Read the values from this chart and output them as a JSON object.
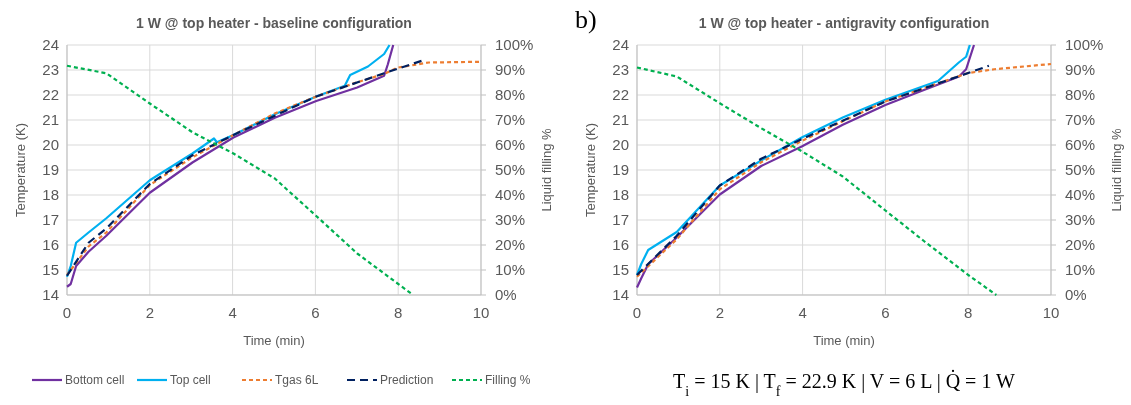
{
  "chart_data": [
    {
      "type": "line",
      "title": "1 W @ top heater - baseline configuration",
      "xlabel": "Time (min)",
      "ylabel": "Temperature (K)",
      "y2label": "Liquid filling %",
      "xlim": [
        0,
        10
      ],
      "xticks": [
        0,
        2,
        4,
        6,
        8,
        10
      ],
      "ylim": [
        14,
        24
      ],
      "yticks": [
        14,
        15,
        16,
        17,
        18,
        19,
        20,
        21,
        22,
        23,
        24
      ],
      "y2lim": [
        0,
        100
      ],
      "y2ticks": [
        {
          "value": 0,
          "label": "0%"
        },
        {
          "value": 10,
          "label": "10%"
        },
        {
          "value": 20,
          "label": "20%"
        },
        {
          "value": 30,
          "label": "30%"
        },
        {
          "value": 40,
          "label": "40%"
        },
        {
          "value": 50,
          "label": "50%"
        },
        {
          "value": 60,
          "label": "60%"
        },
        {
          "value": 70,
          "label": "70%"
        },
        {
          "value": 80,
          "label": "80%"
        },
        {
          "value": 90,
          "label": "90%"
        },
        {
          "value": 100,
          "label": "100%"
        }
      ],
      "grid": true,
      "legend": "bottom",
      "marker": "none",
      "series": [
        {
          "name": "Bottom cell",
          "color": "#7030a0",
          "line_style": "solid",
          "x": [
            0,
            0.09,
            0.22,
            0.52,
            0.95,
            2,
            3.03,
            4.02,
            5.02,
            6.02,
            7.01,
            7.66,
            7.75,
            7.88
          ],
          "values": [
            14.33,
            14.44,
            15.16,
            15.73,
            16.37,
            18.09,
            19.3,
            20.3,
            21.09,
            21.76,
            22.3,
            22.77,
            23.23,
            24
          ]
        },
        {
          "name": "Top cell",
          "color": "#00b0f0",
          "line_style": "solid",
          "x": [
            0,
            0.09,
            0.22,
            0.52,
            0.95,
            2,
            3.03,
            3.55,
            3.62,
            4.02,
            5.02,
            6.02,
            6.71,
            6.84,
            7.27,
            7.66,
            7.79
          ],
          "values": [
            14.73,
            15.16,
            16.09,
            16.5,
            17.07,
            18.59,
            19.66,
            20.26,
            20.11,
            20.4,
            21.23,
            21.94,
            22.37,
            22.8,
            23.14,
            23.64,
            24
          ]
        },
        {
          "name": "Tgas 6L",
          "color": "#ed7d31",
          "line_style": "dashed",
          "x": [
            0,
            0.52,
            0.95,
            2,
            3.03,
            4.02,
            5.02,
            6.02,
            7.01,
            7.66,
            7.97,
            8.74,
            10
          ],
          "values": [
            14.8,
            15.94,
            16.5,
            18.4,
            19.51,
            20.4,
            21.26,
            21.94,
            22.51,
            22.84,
            23.09,
            23.3,
            23.33
          ]
        },
        {
          "name": "Prediction",
          "color": "#002060",
          "line_style": "dashed",
          "x": [
            0,
            0.52,
            0.95,
            2,
            3.03,
            4.02,
            6.02,
            7.66,
            8.57
          ],
          "values": [
            14.77,
            16.09,
            16.66,
            18.44,
            19.59,
            20.4,
            21.94,
            22.87,
            23.37
          ]
        },
        {
          "name": "Filling %",
          "color": "#00b050",
          "line_style": "dashed",
          "axis": "y2",
          "x": [
            0,
            0.95,
            2,
            3.03,
            4.02,
            5.02,
            6.02,
            7.01,
            8.36
          ],
          "values": [
            91.7,
            88.7,
            76.6,
            65.1,
            56.6,
            46.6,
            31.6,
            16.6,
            0
          ]
        }
      ]
    },
    {
      "type": "line",
      "title": "1 W @ top heater - antigravity configuration",
      "xlabel": "Time (min)",
      "ylabel": "Temperature (K)",
      "y2label": "Liquid filling %",
      "annotations": [
        "b)",
        "T$_{i}$ = 15 K | T$_{f}$ = 22.9 K | V = 6 L | Q̇ = 1 W"
      ],
      "xlim": [
        0,
        10
      ],
      "xticks": [
        0,
        2,
        4,
        6,
        8,
        10
      ],
      "ylim": [
        14,
        24
      ],
      "yticks": [
        14,
        15,
        16,
        17,
        18,
        19,
        20,
        21,
        22,
        23,
        24
      ],
      "y2lim": [
        0,
        100
      ],
      "y2ticks": [
        {
          "value": 0,
          "label": "0%"
        },
        {
          "value": 10,
          "label": "10%"
        },
        {
          "value": 20,
          "label": "20%"
        },
        {
          "value": 30,
          "label": "30%"
        },
        {
          "value": 40,
          "label": "40%"
        },
        {
          "value": 50,
          "label": "50%"
        },
        {
          "value": 60,
          "label": "60%"
        },
        {
          "value": 70,
          "label": "70%"
        },
        {
          "value": 80,
          "label": "80%"
        },
        {
          "value": 90,
          "label": "90%"
        },
        {
          "value": 100,
          "label": "100%"
        }
      ],
      "grid": true,
      "marker": "none",
      "series": [
        {
          "color": "#7030a0",
          "line_style": "solid",
          "x": [
            0,
            0.1,
            0.27,
            0.96,
            2,
            3,
            3.99,
            4.97,
            6,
            6.93,
            7.78,
            7.95,
            8.14
          ],
          "values": [
            14.3,
            14.66,
            15.23,
            16.3,
            18.02,
            19.16,
            19.95,
            20.81,
            21.6,
            22.2,
            22.74,
            23.03,
            24
          ]
        },
        {
          "color": "#00b0f0",
          "line_style": "solid",
          "x": [
            0,
            0.1,
            0.27,
            0.96,
            2,
            3,
            3.99,
            4.97,
            6,
            7.27,
            7.78,
            7.95,
            8.04
          ],
          "values": [
            14.8,
            15.23,
            15.8,
            16.52,
            18.38,
            19.38,
            20.31,
            21.1,
            21.81,
            22.56,
            23.31,
            23.53,
            24
          ]
        },
        {
          "color": "#ed7d31",
          "line_style": "dashed",
          "x": [
            0,
            0.96,
            2,
            3,
            3.99,
            4.97,
            6,
            6.93,
            8,
            8.63,
            10
          ],
          "values": [
            14.73,
            16.23,
            18.23,
            19.31,
            20.17,
            20.95,
            21.74,
            22.27,
            22.88,
            23.03,
            23.24
          ]
        },
        {
          "color": "#002060",
          "line_style": "dashed",
          "x": [
            0,
            0.96,
            2,
            3,
            3.99,
            6,
            7.27,
            8,
            8.5
          ],
          "values": [
            14.8,
            16.37,
            18.38,
            19.45,
            20.24,
            21.74,
            22.46,
            22.88,
            23.17
          ]
        },
        {
          "color": "#00b050",
          "line_style": "dashed",
          "axis": "y2",
          "x": [
            0,
            0.96,
            2,
            3,
            3.99,
            4.97,
            6,
            6.93,
            8,
            8.68
          ],
          "values": [
            91,
            87.4,
            76.7,
            66.7,
            57.4,
            47.4,
            33.8,
            21.6,
            8,
            0
          ]
        }
      ]
    }
  ]
}
